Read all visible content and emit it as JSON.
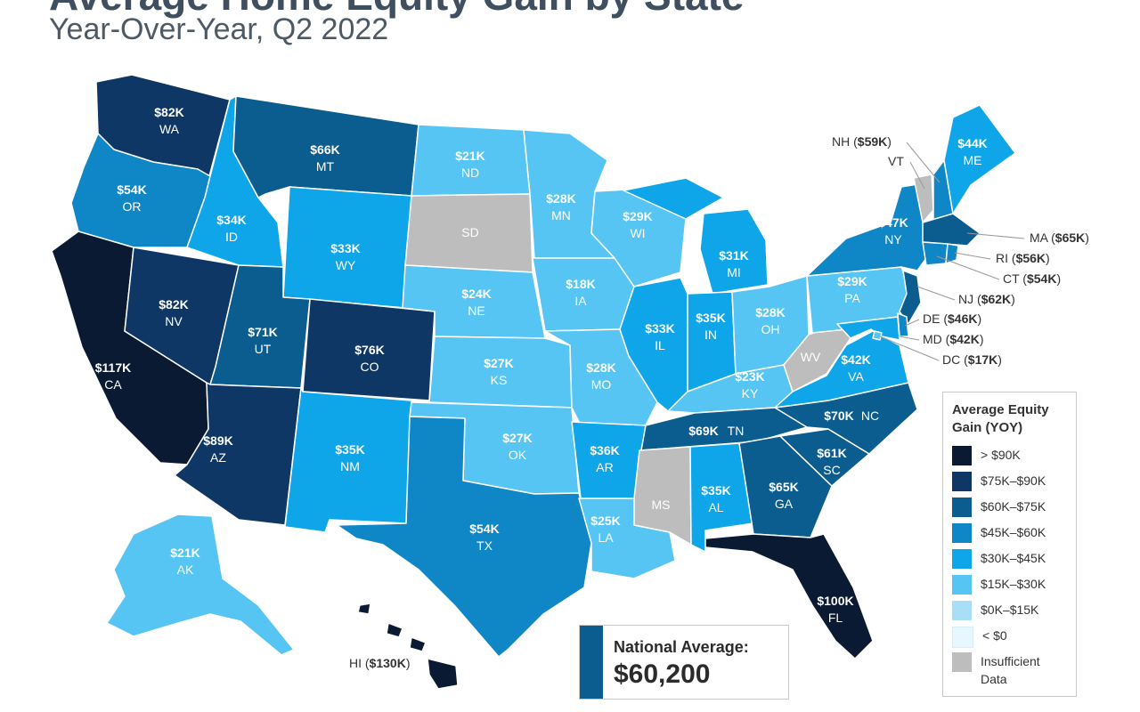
{
  "header": {
    "title": "Average Home Equity Gain by State",
    "subtitle": "Year-Over-Year, Q2 2022"
  },
  "colors": {
    "gt90": "#0a1a33",
    "75_90": "#0e3766",
    "60_75": "#0b5c8f",
    "45_60": "#0f86c6",
    "30_45": "#0ea5e9",
    "15_30": "#56c5f4",
    "0_15": "#a9def7",
    "lt0": "#e8f7ff",
    "insufficient": "#bdbdbd",
    "border": "#ffffff"
  },
  "states": {
    "WA": {
      "code": "WA",
      "value": "$82K",
      "bin": "75_90"
    },
    "OR": {
      "code": "OR",
      "value": "$54K",
      "bin": "45_60"
    },
    "CA": {
      "code": "CA",
      "value": "$117K",
      "bin": "gt90"
    },
    "NV": {
      "code": "NV",
      "value": "$82K",
      "bin": "75_90"
    },
    "ID": {
      "code": "ID",
      "value": "$34K",
      "bin": "30_45"
    },
    "MT": {
      "code": "MT",
      "value": "$66K",
      "bin": "60_75"
    },
    "WY": {
      "code": "WY",
      "value": "$33K",
      "bin": "30_45"
    },
    "UT": {
      "code": "UT",
      "value": "$71K",
      "bin": "60_75"
    },
    "AZ": {
      "code": "AZ",
      "value": "$89K",
      "bin": "75_90"
    },
    "CO": {
      "code": "CO",
      "value": "$76K",
      "bin": "75_90"
    },
    "NM": {
      "code": "NM",
      "value": "$35K",
      "bin": "30_45"
    },
    "ND": {
      "code": "ND",
      "value": "$21K",
      "bin": "15_30"
    },
    "SD": {
      "code": "SD",
      "value": "",
      "bin": "insufficient"
    },
    "NE": {
      "code": "NE",
      "value": "$24K",
      "bin": "15_30"
    },
    "KS": {
      "code": "KS",
      "value": "$27K",
      "bin": "15_30"
    },
    "OK": {
      "code": "OK",
      "value": "$27K",
      "bin": "15_30"
    },
    "TX": {
      "code": "TX",
      "value": "$54K",
      "bin": "45_60"
    },
    "MN": {
      "code": "MN",
      "value": "$28K",
      "bin": "15_30"
    },
    "IA": {
      "code": "IA",
      "value": "$18K",
      "bin": "15_30"
    },
    "MO": {
      "code": "MO",
      "value": "$28K",
      "bin": "15_30"
    },
    "AR": {
      "code": "AR",
      "value": "$36K",
      "bin": "30_45"
    },
    "LA": {
      "code": "LA",
      "value": "$25K",
      "bin": "15_30"
    },
    "WI": {
      "code": "WI",
      "value": "$29K",
      "bin": "15_30"
    },
    "IL": {
      "code": "IL",
      "value": "$33K",
      "bin": "30_45"
    },
    "MI": {
      "code": "MI",
      "value": "$31K",
      "bin": "30_45"
    },
    "IN": {
      "code": "IN",
      "value": "$35K",
      "bin": "30_45"
    },
    "OH": {
      "code": "OH",
      "value": "$28K",
      "bin": "15_30"
    },
    "KY": {
      "code": "KY",
      "value": "$23K",
      "bin": "15_30"
    },
    "TN": {
      "code": "TN",
      "value": "$69K",
      "bin": "60_75"
    },
    "MS": {
      "code": "MS",
      "value": "",
      "bin": "insufficient"
    },
    "AL": {
      "code": "AL",
      "value": "$35K",
      "bin": "30_45"
    },
    "GA": {
      "code": "GA",
      "value": "$65K",
      "bin": "60_75"
    },
    "FL": {
      "code": "FL",
      "value": "$100K",
      "bin": "gt90"
    },
    "SC": {
      "code": "SC",
      "value": "$61K",
      "bin": "60_75"
    },
    "NC": {
      "code": "NC",
      "value": "$70K",
      "bin": "60_75"
    },
    "VA": {
      "code": "VA",
      "value": "$42K",
      "bin": "30_45"
    },
    "WV": {
      "code": "WV",
      "value": "",
      "bin": "insufficient"
    },
    "PA": {
      "code": "PA",
      "value": "$29K",
      "bin": "15_30"
    },
    "NY": {
      "code": "NY",
      "value": "$47K",
      "bin": "45_60"
    },
    "ME": {
      "code": "ME",
      "value": "$44K",
      "bin": "30_45"
    },
    "AK": {
      "code": "AK",
      "value": "$21K",
      "bin": "15_30"
    },
    "HI": {
      "code": "HI",
      "value": "$130K",
      "bin": "gt90"
    },
    "NH": {
      "code": "NH",
      "value": "$59K",
      "bin": "45_60"
    },
    "VT": {
      "code": "VT",
      "value": "",
      "bin": "insufficient"
    },
    "MA": {
      "code": "MA",
      "value": "$65K",
      "bin": "60_75"
    },
    "RI": {
      "code": "RI",
      "value": "$56K",
      "bin": "45_60"
    },
    "CT": {
      "code": "CT",
      "value": "$54K",
      "bin": "45_60"
    },
    "NJ": {
      "code": "NJ",
      "value": "$62K",
      "bin": "60_75"
    },
    "DE": {
      "code": "DE",
      "value": "$46K",
      "bin": "45_60"
    },
    "MD": {
      "code": "MD",
      "value": "$42K",
      "bin": "30_45"
    },
    "DC": {
      "code": "DC",
      "value": "$17K",
      "bin": "15_30"
    }
  },
  "legend": {
    "title": "Average Equity Gain (YOY)",
    "items": [
      {
        "label": "> $90K",
        "bin": "gt90"
      },
      {
        "label": "$75K–$90K",
        "bin": "75_90"
      },
      {
        "label": "$60K–$75K",
        "bin": "60_75"
      },
      {
        "label": "$45K–$60K",
        "bin": "45_60"
      },
      {
        "label": "$30K–$45K",
        "bin": "30_45"
      },
      {
        "label": "$15K–$30K",
        "bin": "15_30"
      },
      {
        "label": "$0K–$15K",
        "bin": "0_15"
      },
      {
        "label": "< $0",
        "bin": "lt0"
      },
      {
        "label": "Insufficient Data",
        "bin": "insufficient"
      }
    ]
  },
  "national_average": {
    "label": "National Average:",
    "value": "$60,200"
  }
}
